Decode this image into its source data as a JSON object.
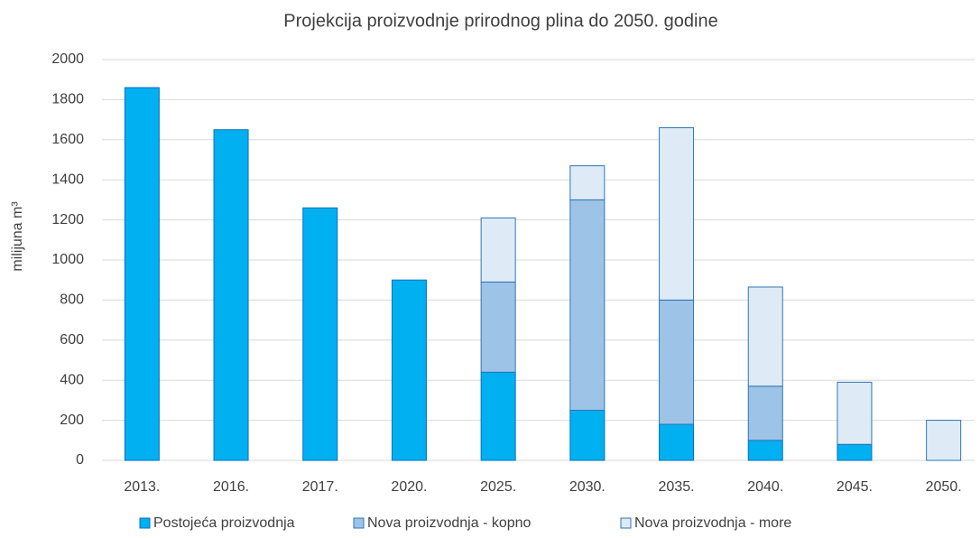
{
  "chart_data": {
    "type": "stacked_bar",
    "title": "Projekcija proizvodnje prirodnog plina do 2050. godine",
    "y_label": "milijuna m³",
    "categories": [
      "2013.",
      "2016.",
      "2017.",
      "2020.",
      "2025.",
      "2030.",
      "2035.",
      "2040.",
      "2045.",
      "2050."
    ],
    "series": [
      {
        "name": "Postojeća proizvodnja",
        "color": "#00b0f0",
        "stroke": "#0070c0",
        "values": [
          1860,
          1650,
          1260,
          900,
          440,
          250,
          180,
          100,
          80,
          0
        ]
      },
      {
        "name": "Nova proizvodnja - kopno",
        "color": "#9dc3e6",
        "stroke": "#2e75b6",
        "values": [
          0,
          0,
          0,
          0,
          450,
          1050,
          620,
          270,
          0,
          0
        ]
      },
      {
        "name": "Nova proizvodnja - more",
        "color": "#deebf7",
        "stroke": "#2e75b6",
        "values": [
          0,
          0,
          0,
          0,
          320,
          170,
          860,
          495,
          310,
          200
        ]
      }
    ],
    "ylim": [
      0,
      2000
    ],
    "yticks": [
      0,
      200,
      400,
      600,
      800,
      1000,
      1200,
      1400,
      1600,
      1800,
      2000
    ],
    "grid": true,
    "legend": "bottom"
  }
}
